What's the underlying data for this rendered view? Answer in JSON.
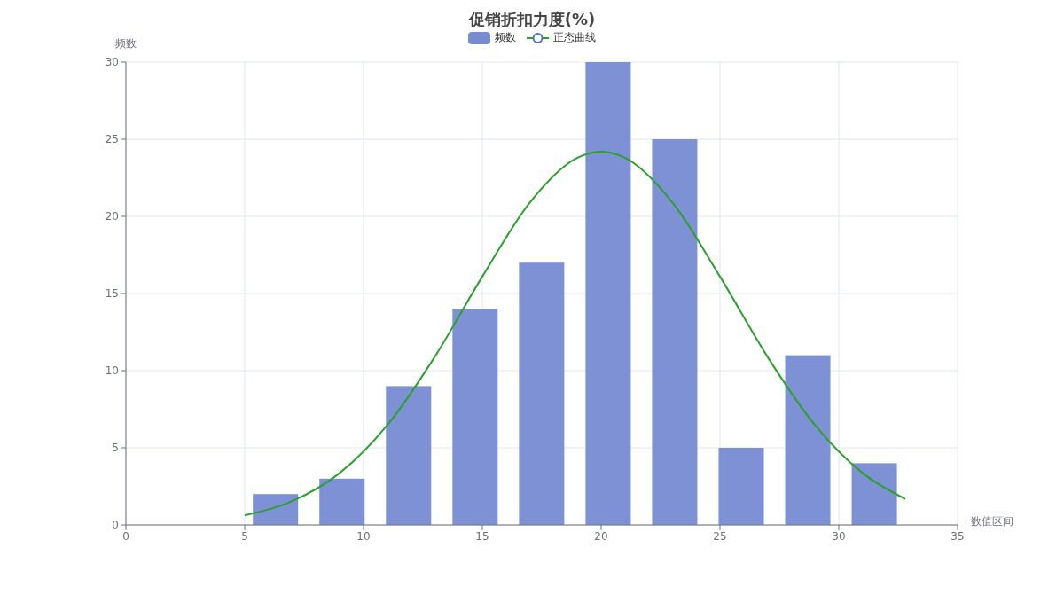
{
  "chart_data": {
    "type": "histogram",
    "title": "促销折扣力度(%)",
    "xlabel": "数值区间",
    "ylabel": "频数",
    "bins": [
      4.9,
      7.7,
      10.5,
      13.3,
      16.1,
      18.9,
      21.7,
      24.5,
      27.3,
      30.1,
      32.9
    ],
    "series": [
      {
        "name": "频数",
        "color": "#768bd2",
        "values": [
          2,
          3,
          9,
          14,
          17,
          30,
          25,
          5,
          11,
          4
        ]
      },
      {
        "name": "正态曲线",
        "type": "line",
        "color": "#2ca02c",
        "x": [
          5,
          7,
          9,
          11,
          13,
          15,
          17,
          19,
          20,
          21,
          23,
          25,
          27,
          29,
          31,
          32.8
        ],
        "values": [
          0.62,
          1.54,
          3.37,
          6.47,
          10.9,
          16.1,
          20.9,
          23.8,
          24.2,
          23.8,
          20.9,
          16.1,
          10.9,
          6.47,
          3.37,
          1.68
        ]
      }
    ],
    "xlim": [
      0,
      35
    ],
    "xticks": [
      0,
      5,
      10,
      15,
      20,
      25,
      30,
      35
    ],
    "ylim": [
      0,
      30
    ],
    "yticks": [
      0,
      5,
      10,
      15,
      20,
      25,
      30
    ],
    "grid": true,
    "legend": "top",
    "marker": "none",
    "line_style": "solid"
  }
}
